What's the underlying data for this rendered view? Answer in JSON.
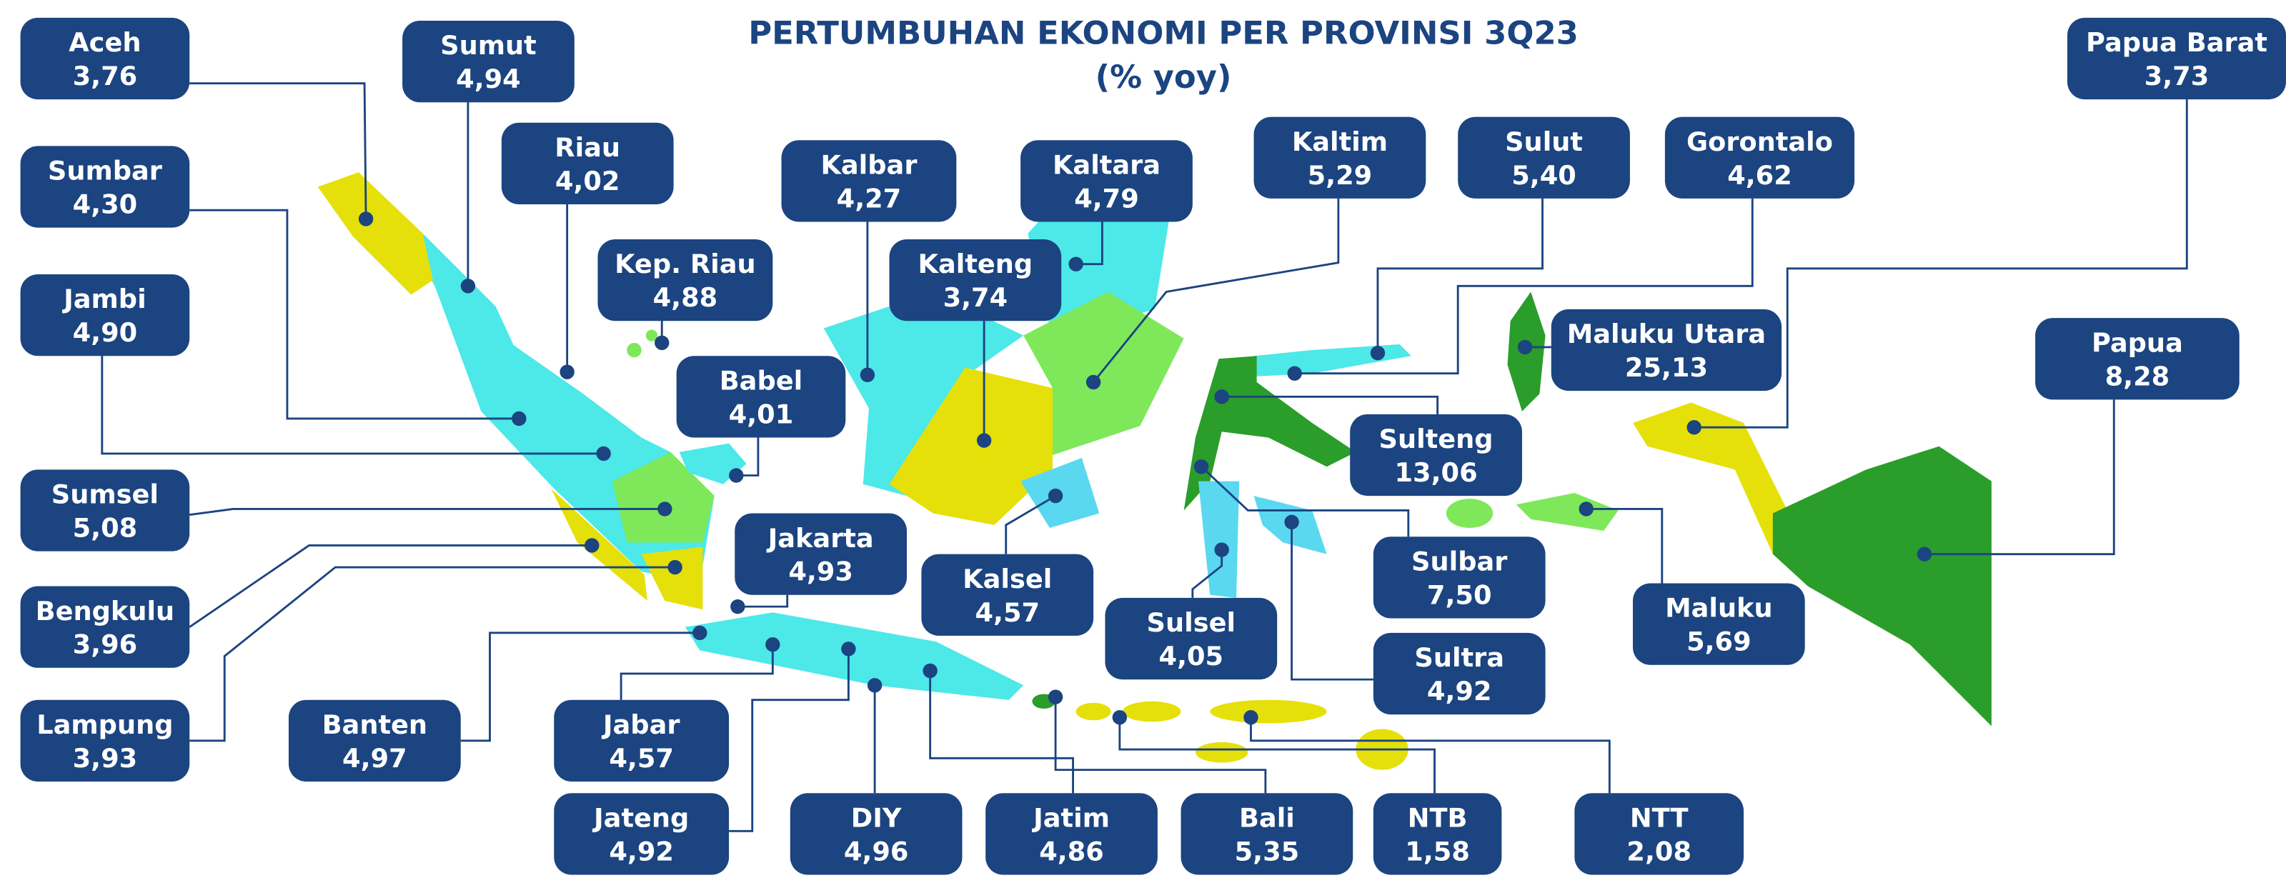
{
  "header": {
    "title": "PERTUMBUHAN EKONOMI PER PROVINSI 3Q23",
    "subtitle": "(% yoy)"
  },
  "provinces": [
    {
      "name": "Aceh",
      "value": "3,76"
    },
    {
      "name": "Sumut",
      "value": "4,94"
    },
    {
      "name": "Riau",
      "value": "4,02"
    },
    {
      "name": "Sumbar",
      "value": "4,30"
    },
    {
      "name": "Kep. Riau",
      "value": "4,88"
    },
    {
      "name": "Jambi",
      "value": "4,90"
    },
    {
      "name": "Babel",
      "value": "4,01"
    },
    {
      "name": "Kalbar",
      "value": "4,27"
    },
    {
      "name": "Kaltara",
      "value": "4,79"
    },
    {
      "name": "Kalteng",
      "value": "3,74"
    },
    {
      "name": "Kaltim",
      "value": "5,29"
    },
    {
      "name": "Sulut",
      "value": "5,40"
    },
    {
      "name": "Gorontalo",
      "value": "4,62"
    },
    {
      "name": "Papua Barat",
      "value": "3,73"
    },
    {
      "name": "Papua",
      "value": "8,28"
    },
    {
      "name": "Maluku Utara",
      "value": "25,13"
    },
    {
      "name": "Sulteng",
      "value": "13,06"
    },
    {
      "name": "Sulbar",
      "value": "7,50"
    },
    {
      "name": "Sulsel",
      "value": "4,05"
    },
    {
      "name": "Sultra",
      "value": "4,92"
    },
    {
      "name": "Maluku",
      "value": "5,69"
    },
    {
      "name": "Kalsel",
      "value": "4,57"
    },
    {
      "name": "Jakarta",
      "value": "4,93"
    },
    {
      "name": "Sumsel",
      "value": "5,08"
    },
    {
      "name": "Bengkulu",
      "value": "3,96"
    },
    {
      "name": "Lampung",
      "value": "3,93"
    },
    {
      "name": "Banten",
      "value": "4,97"
    },
    {
      "name": "Jabar",
      "value": "4,57"
    },
    {
      "name": "Jateng",
      "value": "4,92"
    },
    {
      "name": "DIY",
      "value": "4,96"
    },
    {
      "name": "Jatim",
      "value": "4,86"
    },
    {
      "name": "Bali",
      "value": "5,35"
    },
    {
      "name": "NTB",
      "value": "1,58"
    },
    {
      "name": "NTT",
      "value": "2,08"
    }
  ]
}
